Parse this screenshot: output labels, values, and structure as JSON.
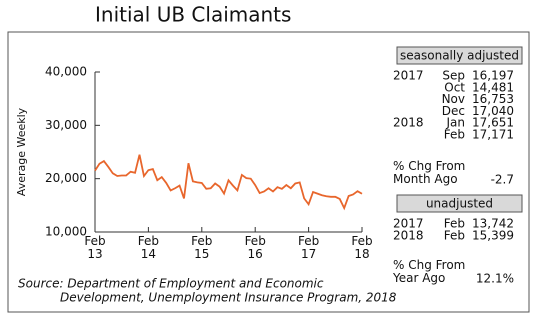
{
  "chart_data": {
    "type": "line",
    "title": "Initial UB Claimants",
    "y_label": "Average Weekly",
    "categories": [
      "Feb\n13",
      null,
      null,
      null,
      null,
      null,
      null,
      null,
      null,
      null,
      null,
      null,
      "Feb\n14",
      null,
      null,
      null,
      null,
      null,
      null,
      null,
      null,
      null,
      null,
      null,
      "Feb\n15",
      null,
      null,
      null,
      null,
      null,
      null,
      null,
      null,
      null,
      null,
      null,
      "Feb\n16",
      null,
      null,
      null,
      null,
      null,
      null,
      null,
      null,
      null,
      null,
      null,
      "Feb\n17",
      null,
      null,
      null,
      null,
      null,
      null,
      null,
      null,
      null,
      null,
      null,
      "Feb\n18"
    ],
    "series": [
      {
        "color": "#e8662c",
        "values": [
          21500,
          22800,
          23300,
          22200,
          21000,
          20500,
          20600,
          20600,
          21300,
          21100,
          24500,
          20500,
          21600,
          21800,
          19700,
          20300,
          19200,
          17800,
          18200,
          18700,
          16300,
          22900,
          19500,
          19300,
          19200,
          18100,
          18200,
          19100,
          18500,
          17200,
          19700,
          18700,
          17800,
          20700,
          20100,
          20000,
          18800,
          17300,
          17600,
          18200,
          17600,
          18400,
          18100,
          18800,
          18200,
          19100,
          19300,
          16300,
          15200,
          17500,
          17200,
          16900,
          16700,
          16600,
          16600,
          16197,
          14481,
          16753,
          17040,
          17651,
          17171
        ]
      }
    ],
    "ylim": [
      10000,
      40000
    ],
    "yticks": [
      {
        "value": 10000,
        "label": "10,000"
      },
      {
        "value": 20000,
        "label": "20,000"
      },
      {
        "value": 30000,
        "label": "30,000"
      },
      {
        "value": 40000,
        "label": "40,000"
      }
    ],
    "grid": false,
    "source": [
      "Source:  Department of Employment and Economic",
      "Development, Unemployment Insurance Program, 2018"
    ]
  },
  "side_panel": {
    "seasonally_adjusted": {
      "title": "seasonally adjusted",
      "rows": [
        {
          "year": "2017",
          "month": "Sep",
          "value": "16,197"
        },
        {
          "month": "Oct",
          "value": "14,481"
        },
        {
          "month": "Nov",
          "value": "16,753"
        },
        {
          "month": "Dec",
          "value": "17,040"
        },
        {
          "year": "2018",
          "month": "Jan",
          "value": "17,651"
        },
        {
          "month": "Feb",
          "value": "17,171"
        }
      ],
      "change_label": "% Chg From\nMonth Ago",
      "change_value": "-2.7"
    },
    "unadjusted": {
      "title": "unadjusted",
      "rows": [
        {
          "year": "2017",
          "month": "Feb",
          "value": "13,742"
        },
        {
          "year": "2018",
          "month": "Feb",
          "value": "15,399"
        }
      ],
      "change_label": "% Chg From\nYear Ago",
      "change_value": "12.1%"
    }
  }
}
